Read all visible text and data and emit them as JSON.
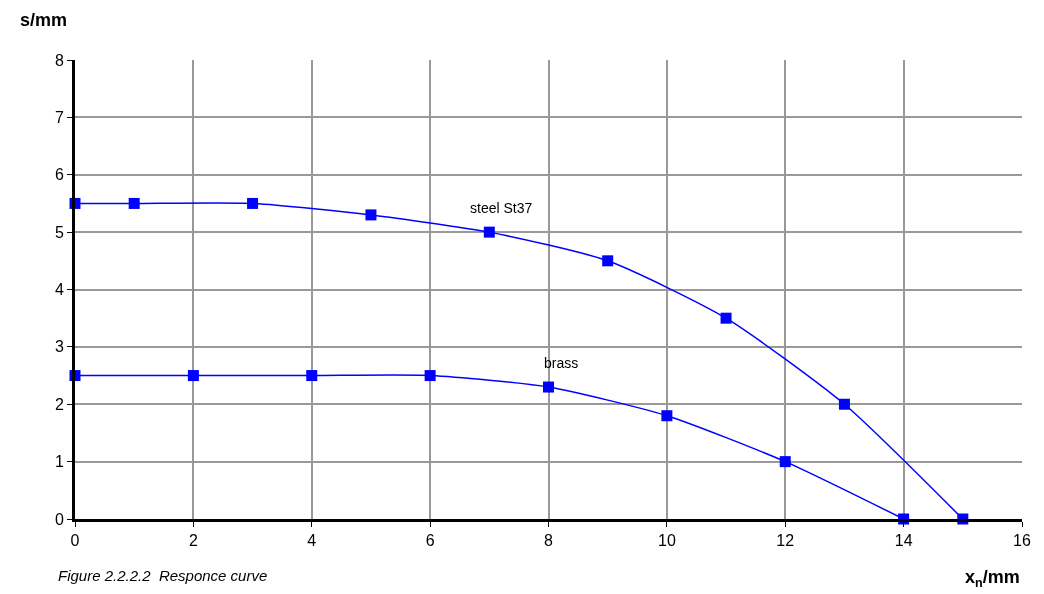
{
  "chart_data": {
    "type": "line",
    "xlabel": "x$_{n}$/mm",
    "ylabel": "s/mm",
    "annotations": [
      "Figure 2.2.2.2  Responce curve"
    ],
    "series": [
      {
        "name": "steel St37",
        "color": "#0000ff",
        "x": [
          0,
          1,
          3,
          5,
          7,
          9,
          11,
          13,
          15
        ],
        "values": [
          5.5,
          5.5,
          5.5,
          5.3,
          5.0,
          4.5,
          3.5,
          2.0,
          0
        ]
      },
      {
        "name": "brass",
        "color": "#0000ff",
        "x": [
          0,
          2,
          4,
          6,
          8,
          10,
          12,
          14
        ],
        "values": [
          2.5,
          2.5,
          2.5,
          2.5,
          2.3,
          1.8,
          1.0,
          0
        ]
      }
    ],
    "xlim": [
      0,
      16
    ],
    "xticks": [
      0,
      2,
      4,
      6,
      8,
      10,
      12,
      14,
      16
    ],
    "ylim": [
      0,
      8
    ],
    "yticks": [
      0,
      1,
      2,
      3,
      4,
      5,
      6,
      7,
      8
    ],
    "grid": true,
    "legend": false,
    "marker": "square",
    "line_style": "solid"
  }
}
